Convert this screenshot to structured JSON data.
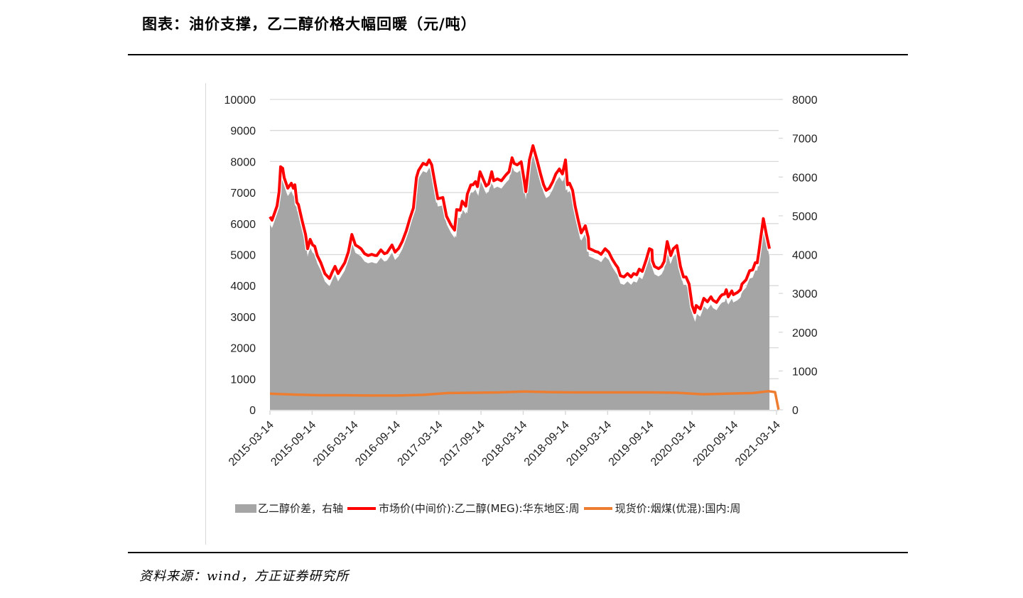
{
  "page": {
    "title": "图表：油价支撑，乙二醇价格大幅回暖（元/吨）",
    "source": "资料来源：wind，方正证券研究所"
  },
  "colors": {
    "area": "#a5a5a5",
    "meg_line": "#ff0000",
    "coal_line": "#ed7d31",
    "grid": "#d9d9d9"
  },
  "legend": {
    "items": [
      {
        "label": "乙二醇价差，右轴",
        "type": "area",
        "color": "#a5a5a5"
      },
      {
        "label": "市场价(中间价):乙二醇(MEG):华东地区:周",
        "type": "line",
        "color": "#ff0000"
      },
      {
        "label": "现货价:烟煤(优混):国内:周",
        "type": "line",
        "color": "#ed7d31"
      }
    ]
  },
  "chart_data": {
    "type": "line",
    "title": "图表：油价支撑，乙二醇价格大幅回暖（元/吨）",
    "xlabel": "",
    "ylabel_left": "元/吨",
    "ylabel_right": "元/吨",
    "ylim_left": [
      0,
      10000
    ],
    "ylim_right": [
      0,
      8000
    ],
    "yticks_left": [
      0,
      1000,
      2000,
      3000,
      4000,
      5000,
      6000,
      7000,
      8000,
      9000,
      10000
    ],
    "yticks_right": [
      0,
      1000,
      2000,
      3000,
      4000,
      5000,
      6000,
      7000,
      8000
    ],
    "categories": [
      "2015-03-14",
      "2015-09-14",
      "2016-03-14",
      "2016-09-14",
      "2017-03-14",
      "2017-09-14",
      "2018-03-14",
      "2018-09-14",
      "2019-03-14",
      "2019-09-14",
      "2020-03-14",
      "2020-09-14",
      "2021-03-14"
    ],
    "grid": true,
    "legend_position": "bottom",
    "series": [
      {
        "name": "市场价(中间价):乙二醇(MEG):华东地区:周",
        "axis": "left",
        "type": "line",
        "x_frac": [
          0,
          0.004,
          0.014,
          0.018,
          0.021,
          0.025,
          0.028,
          0.035,
          0.042,
          0.046,
          0.049,
          0.053,
          0.056,
          0.063,
          0.07,
          0.074,
          0.079,
          0.084,
          0.088,
          0.093,
          0.1,
          0.108,
          0.117,
          0.123,
          0.128,
          0.134,
          0.14,
          0.147,
          0.154,
          0.161,
          0.168,
          0.173,
          0.179,
          0.186,
          0.193,
          0.2,
          0.207,
          0.21,
          0.218,
          0.225,
          0.23,
          0.24,
          0.246,
          0.253,
          0.26,
          0.268,
          0.275,
          0.282,
          0.288,
          0.292,
          0.301,
          0.308,
          0.313,
          0.318,
          0.325,
          0.33,
          0.34,
          0.347,
          0.356,
          0.363,
          0.367,
          0.374,
          0.378,
          0.385,
          0.388,
          0.395,
          0.399,
          0.404,
          0.408,
          0.413,
          0.419,
          0.425,
          0.43,
          0.436,
          0.44,
          0.447,
          0.455,
          0.464,
          0.47,
          0.476,
          0.48,
          0.486,
          0.494,
          0.5,
          0.503,
          0.506,
          0.51,
          0.517,
          0.525,
          0.532,
          0.538,
          0.543,
          0.549,
          0.556,
          0.562,
          0.569,
          0.575,
          0.581,
          0.585,
          0.589,
          0.595,
          0.6,
          0.606,
          0.612,
          0.62,
          0.626,
          0.627,
          0.634,
          0.64,
          0.645,
          0.651,
          0.659,
          0.666,
          0.673,
          0.679,
          0.684,
          0.689,
          0.696,
          0.703,
          0.71,
          0.715,
          0.721,
          0.726,
          0.732,
          0.74,
          0.746,
          0.751,
          0.752,
          0.756,
          0.764,
          0.77,
          0.775,
          0.781,
          0.788,
          0.793,
          0.8,
          0.807,
          0.813,
          0.818,
          0.824,
          0.83,
          0.835,
          0.838,
          0.846,
          0.853,
          0.86,
          0.867,
          0.871,
          0.878,
          0.885,
          0.889,
          0.894,
          0.897,
          0.901,
          0.908,
          0.911,
          0.919,
          0.925,
          0.928,
          0.936,
          0.943,
          0.949,
          0.954,
          0.958,
          0.961,
          0.97,
          0.976,
          0.982
        ],
        "values": [
          6220,
          6110,
          6570,
          7030,
          7830,
          7780,
          7480,
          7140,
          7300,
          7140,
          7250,
          6680,
          6610,
          6110,
          5650,
          5190,
          5490,
          5310,
          5270,
          4970,
          4740,
          4390,
          4230,
          4460,
          4620,
          4390,
          4550,
          4740,
          5080,
          5650,
          5310,
          5260,
          5190,
          5030,
          4970,
          5010,
          4970,
          4970,
          5150,
          5030,
          5060,
          5310,
          5080,
          5200,
          5420,
          5770,
          6160,
          6500,
          7480,
          7710,
          7940,
          7890,
          8050,
          7890,
          7250,
          6800,
          6840,
          6240,
          5950,
          5790,
          6450,
          6430,
          6720,
          6560,
          6950,
          7250,
          7250,
          7350,
          7190,
          7670,
          7440,
          7210,
          7280,
          7670,
          7380,
          7440,
          7380,
          7570,
          7670,
          8120,
          7940,
          7890,
          7990,
          7370,
          7030,
          7480,
          8050,
          8510,
          8050,
          7600,
          7250,
          7070,
          7140,
          7350,
          7600,
          7760,
          7600,
          8050,
          7250,
          7300,
          7070,
          6560,
          6110,
          5700,
          5930,
          5540,
          5200,
          5150,
          5100,
          5080,
          5010,
          5190,
          5080,
          4850,
          4690,
          4580,
          4320,
          4280,
          4390,
          4280,
          4390,
          4350,
          4530,
          4460,
          4850,
          5190,
          5150,
          4800,
          4620,
          4550,
          4620,
          4780,
          5420,
          4970,
          5190,
          5290,
          4620,
          4280,
          4280,
          4050,
          3360,
          3130,
          3360,
          3250,
          3590,
          3480,
          3640,
          3530,
          3460,
          3640,
          3710,
          3730,
          3870,
          3640,
          3830,
          3710,
          3780,
          3870,
          4050,
          4190,
          4480,
          4510,
          4740,
          4740,
          5080,
          6160,
          5650,
          5190
        ]
      },
      {
        "name": "乙二醇价差，右轴",
        "axis": "right",
        "type": "area",
        "note": "Tracks just below MEG price; values approx right-axis reading",
        "x_frac": [
          0,
          0.028,
          0.049,
          0.07,
          0.093,
          0.117,
          0.14,
          0.161,
          0.186,
          0.21,
          0.24,
          0.268,
          0.301,
          0.318,
          0.347,
          0.374,
          0.404,
          0.436,
          0.464,
          0.5,
          0.517,
          0.549,
          0.581,
          0.612,
          0.634,
          0.659,
          0.689,
          0.715,
          0.746,
          0.764,
          0.781,
          0.801,
          0.818,
          0.838,
          0.86,
          0.878,
          0.901,
          0.925,
          0.949,
          0.97,
          0.982
        ],
        "values": [
          4700,
          6100,
          5650,
          4700,
          3960,
          3230,
          3460,
          4000,
          3760,
          3640,
          3900,
          5080,
          6360,
          6140,
          4450,
          5050,
          5770,
          5850,
          5950,
          6300,
          5800,
          5870,
          5980,
          4650,
          3780,
          3620,
          3150,
          3110,
          3400,
          3880,
          3770,
          3300,
          2160,
          2330,
          2450,
          2560,
          2700,
          2700,
          3190,
          3700,
          4190
        ]
      },
      {
        "name": "现货价:烟煤(优混):国内:周",
        "axis": "left",
        "type": "line",
        "x_frac": [
          0,
          0.05,
          0.1,
          0.15,
          0.2,
          0.25,
          0.3,
          0.35,
          0.4,
          0.45,
          0.5,
          0.55,
          0.6,
          0.65,
          0.7,
          0.75,
          0.8,
          0.85,
          0.9,
          0.95,
          0.98,
          0.993,
          1.0
        ],
        "values": [
          520,
          490,
          470,
          470,
          460,
          460,
          480,
          540,
          550,
          560,
          590,
          570,
          560,
          560,
          560,
          560,
          550,
          500,
          520,
          540,
          600,
          570,
          0
        ]
      }
    ]
  }
}
